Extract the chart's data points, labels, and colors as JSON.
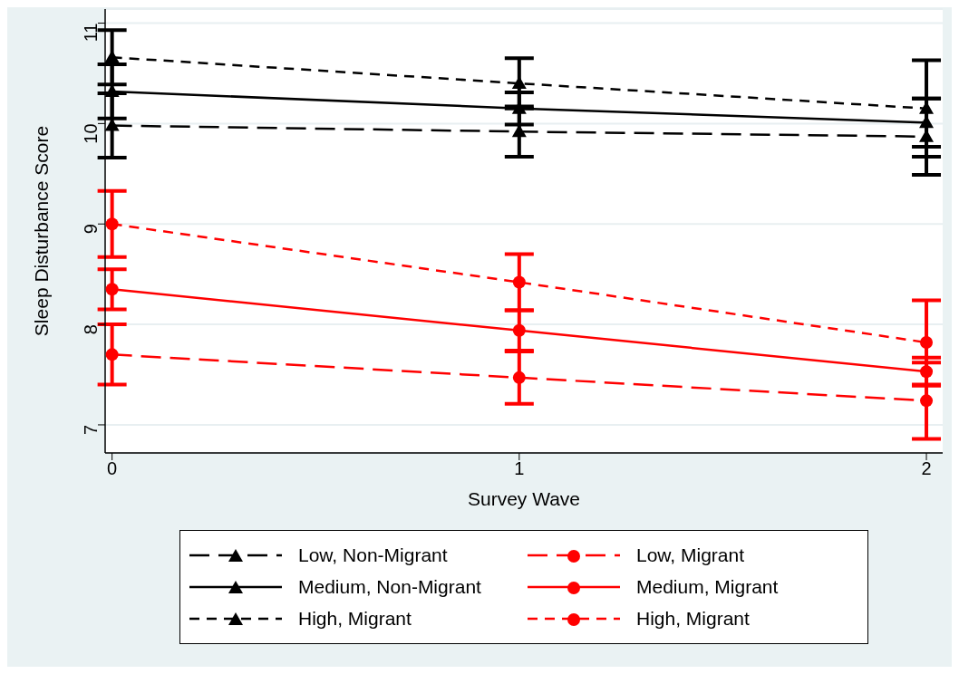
{
  "chart_data": {
    "type": "line",
    "xlabel": "Survey Wave",
    "ylabel": "Sleep Disturbance Score",
    "x": [
      0,
      1,
      2
    ],
    "xlim": [
      -0.017,
      2.04
    ],
    "xticks": [
      0,
      1,
      2
    ],
    "ylim": [
      6.72,
      11.14
    ],
    "yticks": [
      7,
      8,
      9,
      10,
      11
    ],
    "grid": "y",
    "legend": "bottom",
    "series": [
      {
        "name": "Low, Non-Migrant",
        "color": "#000000",
        "marker": "triangle",
        "line_style": "dashed",
        "values": [
          9.98,
          9.92,
          9.87
        ],
        "errors": [
          0.32,
          0.25,
          0.38
        ]
      },
      {
        "name": "Medium, Non-Migrant",
        "color": "#000000",
        "marker": "triangle",
        "line_style": "solid",
        "values": [
          10.32,
          10.15,
          10.01
        ],
        "errors": [
          0.27,
          0.16,
          0.24
        ]
      },
      {
        "name": "High, Migrant",
        "color": "#000000",
        "marker": "triangle",
        "line_style": "dashed",
        "values": [
          10.66,
          10.4,
          10.15
        ],
        "errors": [
          0.27,
          0.25,
          0.48
        ]
      },
      {
        "name": "Low, Migrant",
        "color": "#ff0000",
        "marker": "circle",
        "line_style": "dashed",
        "values": [
          7.7,
          7.47,
          7.24
        ],
        "errors": [
          0.3,
          0.26,
          0.38
        ]
      },
      {
        "name": "Medium, Migrant",
        "color": "#ff0000",
        "marker": "circle",
        "line_style": "solid",
        "values": [
          8.35,
          7.94,
          7.53
        ],
        "errors": [
          0.2,
          0.2,
          0.14
        ]
      },
      {
        "name": "High, Migrant",
        "color": "#ff0000",
        "marker": "circle",
        "line_style": "dashed",
        "values": [
          9.0,
          8.42,
          7.82
        ],
        "errors": [
          0.33,
          0.28,
          0.42
        ]
      }
    ]
  }
}
